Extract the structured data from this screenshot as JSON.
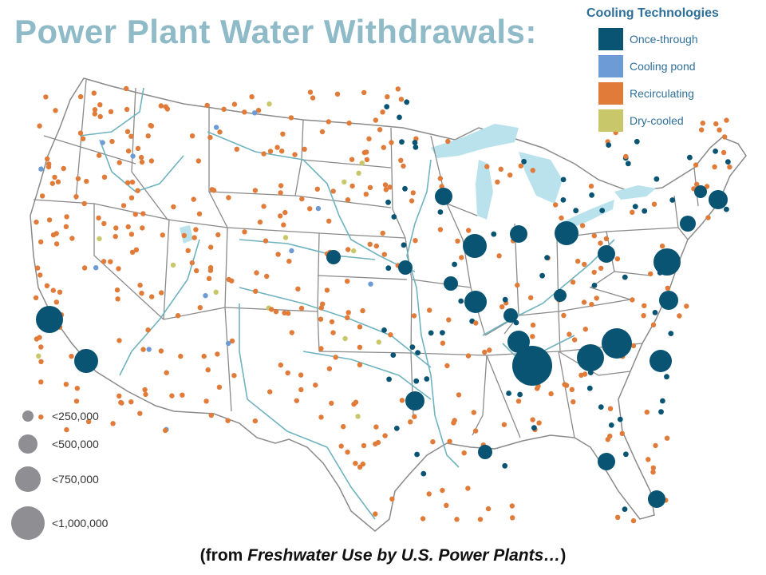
{
  "title": "Power Plant Water Withdrawals:",
  "legend": {
    "title": "Cooling Technologies",
    "items": [
      {
        "label": "Once-through",
        "color": "#0a5473"
      },
      {
        "label": "Cooling pond",
        "color": "#6c9bd6"
      },
      {
        "label": "Recirculating",
        "color": "#e07b39"
      },
      {
        "label": "Dry-cooled",
        "color": "#c8c86a"
      }
    ]
  },
  "size_legend": {
    "items": [
      {
        "label": "<250,000"
      },
      {
        "label": "<500,000"
      },
      {
        "label": "<750,000"
      },
      {
        "label": "<1,000,000"
      }
    ],
    "color": "#8e8e93"
  },
  "caption": {
    "prefix": "(from ",
    "italic": "Freshwater Use by U.S. Power Plants…",
    "suffix": ")"
  },
  "colors": {
    "land": "#ffffff",
    "borders": "#8a8a8a",
    "rivers": "#6fb3be",
    "lakes": "#b9e2ec"
  }
}
